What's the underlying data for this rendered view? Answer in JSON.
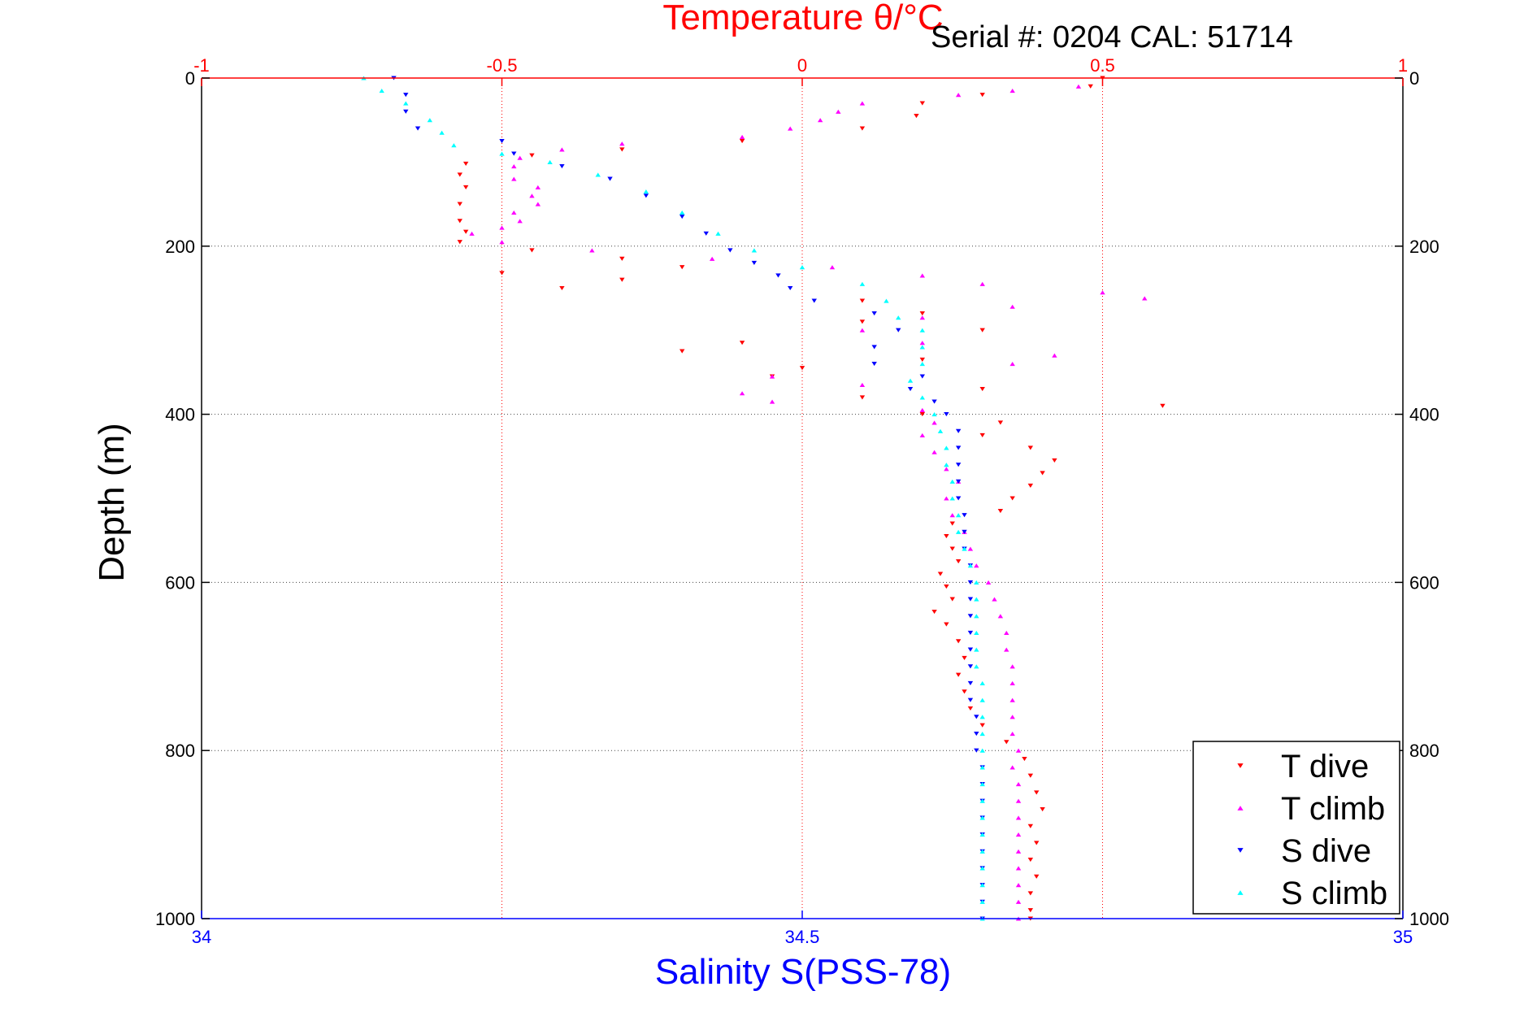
{
  "chart_data": {
    "type": "scatter",
    "title": "Temperature θ/°C",
    "subtitle": "Serial #: 0204  CAL: 51714",
    "ylabel": "Depth (m)",
    "xlabel_bottom": "Salinity S(PSS-78)",
    "ylim": [
      0,
      1000
    ],
    "y_reversed": true,
    "y_ticks": [
      "0",
      "200",
      "400",
      "600",
      "800",
      "1000"
    ],
    "y_tick_values": [
      0,
      200,
      400,
      600,
      800,
      1000
    ],
    "x_top": {
      "label": "Temperature θ/°C",
      "range": [
        -1,
        1
      ],
      "ticks": [
        "-1",
        "-0.5",
        "0",
        "0.5",
        "1"
      ],
      "tick_values": [
        -1,
        -0.5,
        0,
        0.5,
        1
      ],
      "color": "#ff0000"
    },
    "x_bottom": {
      "label": "Salinity S(PSS-78)",
      "range": [
        34,
        35
      ],
      "ticks": [
        "34",
        "34.5",
        "35"
      ],
      "tick_values": [
        34,
        34.5,
        35
      ],
      "color": "#0000ff"
    },
    "grid": true,
    "legend_position": "bottom-right",
    "series": [
      {
        "name": "T dive",
        "axis": "top",
        "color": "#ff0000",
        "marker": "down-triangle",
        "points": [
          [
            0.5,
            0
          ],
          [
            0.48,
            10
          ],
          [
            0.3,
            20
          ],
          [
            0.2,
            30
          ],
          [
            0.19,
            45
          ],
          [
            0.1,
            60
          ],
          [
            -0.1,
            75
          ],
          [
            -0.3,
            85
          ],
          [
            -0.45,
            92
          ],
          [
            -0.56,
            102
          ],
          [
            -0.57,
            115
          ],
          [
            -0.56,
            130
          ],
          [
            -0.57,
            150
          ],
          [
            -0.57,
            170
          ],
          [
            -0.56,
            183
          ],
          [
            -0.57,
            195
          ],
          [
            -0.45,
            205
          ],
          [
            -0.3,
            215
          ],
          [
            -0.2,
            225
          ],
          [
            -0.5,
            232
          ],
          [
            -0.3,
            240
          ],
          [
            -0.4,
            250
          ],
          [
            0.1,
            265
          ],
          [
            0.2,
            280
          ],
          [
            0.1,
            290
          ],
          [
            0.3,
            300
          ],
          [
            -0.1,
            315
          ],
          [
            -0.2,
            325
          ],
          [
            0.2,
            335
          ],
          [
            0,
            345
          ],
          [
            -0.05,
            355
          ],
          [
            0.3,
            370
          ],
          [
            0.1,
            380
          ],
          [
            0.6,
            390
          ],
          [
            0.2,
            400
          ],
          [
            0.33,
            410
          ],
          [
            0.3,
            425
          ],
          [
            0.38,
            440
          ],
          [
            0.42,
            455
          ],
          [
            0.4,
            470
          ],
          [
            0.38,
            485
          ],
          [
            0.35,
            500
          ],
          [
            0.33,
            515
          ],
          [
            0.25,
            530
          ],
          [
            0.24,
            545
          ],
          [
            0.25,
            560
          ],
          [
            0.26,
            575
          ],
          [
            0.23,
            590
          ],
          [
            0.24,
            605
          ],
          [
            0.25,
            620
          ],
          [
            0.22,
            635
          ],
          [
            0.24,
            650
          ],
          [
            0.26,
            670
          ],
          [
            0.27,
            690
          ],
          [
            0.26,
            710
          ],
          [
            0.27,
            730
          ],
          [
            0.28,
            750
          ],
          [
            0.3,
            770
          ],
          [
            0.34,
            790
          ],
          [
            0.37,
            810
          ],
          [
            0.38,
            830
          ],
          [
            0.39,
            850
          ],
          [
            0.4,
            870
          ],
          [
            0.38,
            890
          ],
          [
            0.39,
            910
          ],
          [
            0.38,
            930
          ],
          [
            0.39,
            950
          ],
          [
            0.38,
            970
          ],
          [
            0.38,
            990
          ],
          [
            0.38,
            1000
          ]
        ]
      },
      {
        "name": "T climb",
        "axis": "top",
        "color": "#ff00ff",
        "marker": "up-triangle",
        "points": [
          [
            0.46,
            10
          ],
          [
            0.35,
            15
          ],
          [
            0.26,
            20
          ],
          [
            0.1,
            30
          ],
          [
            0.06,
            40
          ],
          [
            0.03,
            50
          ],
          [
            -0.02,
            60
          ],
          [
            -0.1,
            70
          ],
          [
            -0.3,
            78
          ],
          [
            -0.4,
            85
          ],
          [
            -0.47,
            95
          ],
          [
            -0.48,
            105
          ],
          [
            -0.48,
            120
          ],
          [
            -0.44,
            130
          ],
          [
            -0.45,
            140
          ],
          [
            -0.44,
            150
          ],
          [
            -0.48,
            160
          ],
          [
            -0.47,
            170
          ],
          [
            -0.5,
            178
          ],
          [
            -0.55,
            185
          ],
          [
            -0.5,
            195
          ],
          [
            -0.35,
            205
          ],
          [
            -0.15,
            215
          ],
          [
            0.05,
            225
          ],
          [
            0.2,
            235
          ],
          [
            0.3,
            245
          ],
          [
            0.5,
            255
          ],
          [
            0.57,
            262
          ],
          [
            0.35,
            272
          ],
          [
            0.2,
            285
          ],
          [
            0.1,
            300
          ],
          [
            0.2,
            315
          ],
          [
            0.42,
            330
          ],
          [
            0.35,
            340
          ],
          [
            -0.05,
            355
          ],
          [
            0.1,
            365
          ],
          [
            -0.1,
            375
          ],
          [
            -0.05,
            385
          ],
          [
            0.2,
            395
          ],
          [
            0.22,
            410
          ],
          [
            0.2,
            425
          ],
          [
            0.22,
            445
          ],
          [
            0.24,
            465
          ],
          [
            0.26,
            480
          ],
          [
            0.24,
            500
          ],
          [
            0.25,
            520
          ],
          [
            0.27,
            540
          ],
          [
            0.28,
            560
          ],
          [
            0.29,
            580
          ],
          [
            0.31,
            600
          ],
          [
            0.32,
            620
          ],
          [
            0.33,
            640
          ],
          [
            0.34,
            660
          ],
          [
            0.34,
            680
          ],
          [
            0.35,
            700
          ],
          [
            0.35,
            720
          ],
          [
            0.35,
            740
          ],
          [
            0.35,
            760
          ],
          [
            0.35,
            780
          ],
          [
            0.36,
            800
          ],
          [
            0.35,
            820
          ],
          [
            0.36,
            840
          ],
          [
            0.36,
            860
          ],
          [
            0.36,
            880
          ],
          [
            0.36,
            900
          ],
          [
            0.36,
            920
          ],
          [
            0.36,
            940
          ],
          [
            0.36,
            960
          ],
          [
            0.36,
            980
          ],
          [
            0.36,
            1000
          ]
        ]
      },
      {
        "name": "S dive",
        "axis": "bottom",
        "color": "#0000ff",
        "marker": "down-triangle",
        "points": [
          [
            34.16,
            0
          ],
          [
            34.17,
            20
          ],
          [
            34.17,
            40
          ],
          [
            34.18,
            60
          ],
          [
            34.25,
            75
          ],
          [
            34.26,
            90
          ],
          [
            34.3,
            105
          ],
          [
            34.34,
            120
          ],
          [
            34.37,
            140
          ],
          [
            34.4,
            165
          ],
          [
            34.42,
            185
          ],
          [
            34.44,
            205
          ],
          [
            34.46,
            220
          ],
          [
            34.48,
            235
          ],
          [
            34.49,
            250
          ],
          [
            34.51,
            265
          ],
          [
            34.56,
            280
          ],
          [
            34.58,
            300
          ],
          [
            34.56,
            320
          ],
          [
            34.56,
            340
          ],
          [
            34.6,
            355
          ],
          [
            34.59,
            370
          ],
          [
            34.61,
            385
          ],
          [
            34.62,
            400
          ],
          [
            34.63,
            420
          ],
          [
            34.63,
            440
          ],
          [
            34.63,
            460
          ],
          [
            34.63,
            480
          ],
          [
            34.63,
            500
          ],
          [
            34.635,
            520
          ],
          [
            34.635,
            540
          ],
          [
            34.635,
            560
          ],
          [
            34.64,
            580
          ],
          [
            34.64,
            600
          ],
          [
            34.64,
            620
          ],
          [
            34.64,
            640
          ],
          [
            34.64,
            660
          ],
          [
            34.64,
            680
          ],
          [
            34.64,
            700
          ],
          [
            34.64,
            720
          ],
          [
            34.64,
            740
          ],
          [
            34.645,
            760
          ],
          [
            34.645,
            780
          ],
          [
            34.645,
            800
          ],
          [
            34.65,
            820
          ],
          [
            34.65,
            840
          ],
          [
            34.65,
            860
          ],
          [
            34.65,
            880
          ],
          [
            34.65,
            900
          ],
          [
            34.65,
            920
          ],
          [
            34.65,
            940
          ],
          [
            34.65,
            960
          ],
          [
            34.65,
            980
          ],
          [
            34.65,
            1000
          ]
        ]
      },
      {
        "name": "S climb",
        "axis": "bottom",
        "color": "#00ffff",
        "marker": "up-triangle",
        "points": [
          [
            34.135,
            0
          ],
          [
            34.15,
            15
          ],
          [
            34.17,
            30
          ],
          [
            34.19,
            50
          ],
          [
            34.2,
            65
          ],
          [
            34.21,
            80
          ],
          [
            34.25,
            90
          ],
          [
            34.29,
            100
          ],
          [
            34.33,
            115
          ],
          [
            34.37,
            135
          ],
          [
            34.4,
            160
          ],
          [
            34.43,
            185
          ],
          [
            34.46,
            205
          ],
          [
            34.5,
            225
          ],
          [
            34.55,
            245
          ],
          [
            34.57,
            265
          ],
          [
            34.58,
            285
          ],
          [
            34.6,
            300
          ],
          [
            34.6,
            320
          ],
          [
            34.6,
            340
          ],
          [
            34.59,
            360
          ],
          [
            34.6,
            380
          ],
          [
            34.61,
            400
          ],
          [
            34.615,
            420
          ],
          [
            34.62,
            440
          ],
          [
            34.62,
            460
          ],
          [
            34.625,
            480
          ],
          [
            34.625,
            500
          ],
          [
            34.63,
            520
          ],
          [
            34.63,
            540
          ],
          [
            34.635,
            560
          ],
          [
            34.64,
            580
          ],
          [
            34.645,
            600
          ],
          [
            34.645,
            620
          ],
          [
            34.645,
            640
          ],
          [
            34.645,
            660
          ],
          [
            34.645,
            680
          ],
          [
            34.645,
            700
          ],
          [
            34.65,
            720
          ],
          [
            34.65,
            740
          ],
          [
            34.65,
            760
          ],
          [
            34.65,
            780
          ],
          [
            34.65,
            800
          ],
          [
            34.65,
            820
          ],
          [
            34.65,
            840
          ],
          [
            34.65,
            860
          ],
          [
            34.65,
            880
          ],
          [
            34.65,
            900
          ],
          [
            34.65,
            920
          ],
          [
            34.65,
            940
          ],
          [
            34.65,
            960
          ],
          [
            34.65,
            980
          ],
          [
            34.65,
            1000
          ]
        ]
      }
    ]
  }
}
